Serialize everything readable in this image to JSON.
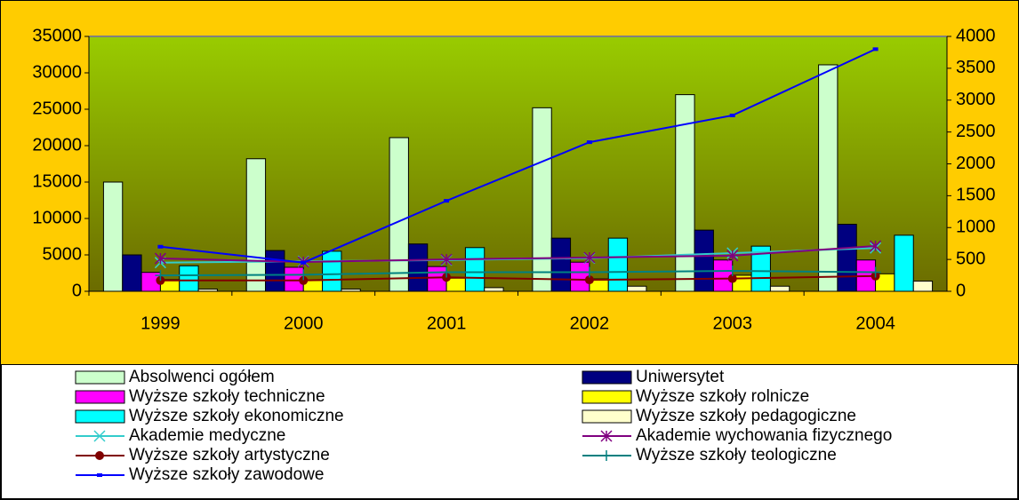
{
  "chart_data": {
    "type": "bar_line",
    "categories": [
      "1999",
      "2000",
      "2001",
      "2002",
      "2003",
      "2004"
    ],
    "ylim": [
      0,
      35000
    ],
    "yticks": [
      0,
      5000,
      10000,
      15000,
      20000,
      25000,
      30000,
      35000
    ],
    "y2lim": [
      0,
      4000
    ],
    "y2ticks": [
      0,
      500,
      1000,
      1500,
      2000,
      2500,
      3000,
      3500,
      4000
    ],
    "grid": false,
    "legend": "bottom",
    "series": [
      {
        "name": "Absolwenci ogółem",
        "kind": "bar",
        "color": "#CCFFCC",
        "values": [
          15000,
          18200,
          21100,
          25200,
          27000,
          31100
        ]
      },
      {
        "name": "Uniwersytet",
        "kind": "bar",
        "color": "#000080",
        "values": [
          5000,
          5600,
          6500,
          7300,
          8400,
          9200
        ]
      },
      {
        "name": "Wyższe szkoły techniczne",
        "kind": "bar",
        "color": "#FF00FF",
        "values": [
          2600,
          3300,
          3400,
          4000,
          4300,
          4300
        ]
      },
      {
        "name": "Wyższe szkoły rolnicze",
        "kind": "bar",
        "color": "#FFFF00",
        "values": [
          1600,
          1500,
          1800,
          1700,
          2200,
          2400
        ]
      },
      {
        "name": "Wyższe szkoły ekonomiczne",
        "kind": "bar",
        "color": "#00FFFF",
        "values": [
          3500,
          5500,
          6000,
          7300,
          6200,
          7700
        ]
      },
      {
        "name": "Wyższe szkoły pedagogiczne",
        "kind": "bar",
        "color": "#FFFFCC",
        "values": [
          300,
          300,
          500,
          700,
          700,
          1400
        ]
      },
      {
        "name": "Akademie medyczne",
        "kind": "line",
        "axis": "y2",
        "marker": "x",
        "color": "#33CCCC",
        "values": [
          450,
          470,
          490,
          520,
          600,
          680
        ]
      },
      {
        "name": "Akademie wychowania fizycznego",
        "kind": "line",
        "axis": "y2",
        "marker": "star",
        "color": "#800080",
        "values": [
          515,
          460,
          500,
          530,
          560,
          710
        ]
      },
      {
        "name": "Wyższe szkoły artystyczne",
        "kind": "line",
        "axis": "y2",
        "marker": "circle",
        "color": "#800000",
        "values": [
          170,
          170,
          220,
          180,
          200,
          240
        ]
      },
      {
        "name": "Wyższe szkoły teologiczne",
        "kind": "line",
        "axis": "y2",
        "marker": "plus",
        "color": "#008080",
        "values": [
          250,
          260,
          300,
          300,
          320,
          300
        ]
      },
      {
        "name": "Wyższe szkoły zawodowe",
        "kind": "line",
        "axis": "y2",
        "marker": "dash",
        "color": "#0000FF",
        "values": [
          700,
          450,
          1420,
          2340,
          2760,
          3800
        ]
      }
    ]
  }
}
